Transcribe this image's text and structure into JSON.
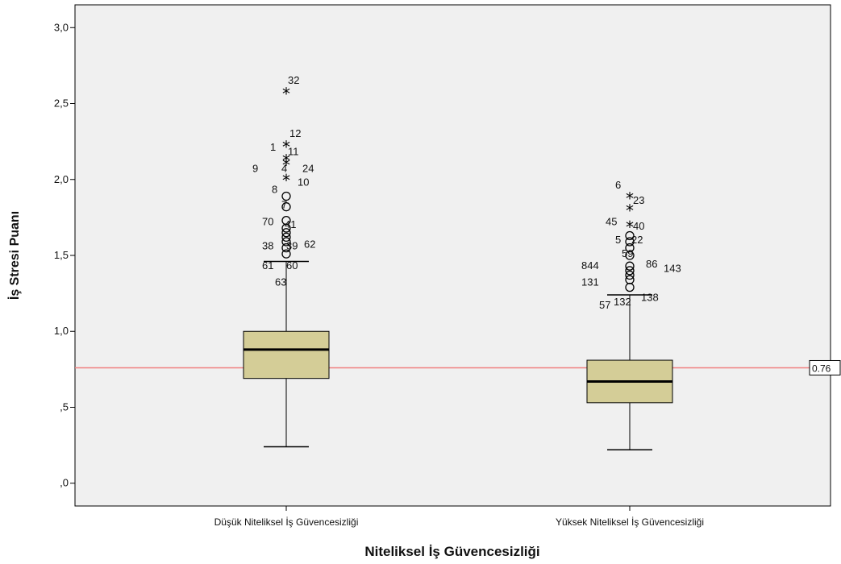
{
  "chart_data": {
    "type": "boxplot",
    "xlabel": "Niteliksel İş Güvencesizliği",
    "ylabel": "İş Stresi Puanı",
    "ylim": [
      -0.15,
      3.15
    ],
    "yticks": [
      {
        "value": 0.0,
        "label": ",0"
      },
      {
        "value": 0.5,
        "label": ",5"
      },
      {
        "value": 1.0,
        "label": "1,0"
      },
      {
        "value": 1.5,
        "label": "1,5"
      },
      {
        "value": 2.0,
        "label": "2,0"
      },
      {
        "value": 2.5,
        "label": "2,5"
      },
      {
        "value": 3.0,
        "label": "3,0"
      }
    ],
    "reference_line": {
      "value": 0.76,
      "label": "0.76",
      "color": "#f08080"
    },
    "colors": {
      "box_fill": "#d4cd97",
      "plot_bg": "#f0f0f0",
      "median": "#000000"
    },
    "categories": [
      {
        "name": "Düşük Niteliksel İş Güvencesizliği",
        "whisker_low": 0.24,
        "q1": 0.69,
        "median": 0.88,
        "q3": 1.0,
        "whisker_high": 1.46,
        "outliers": [
          1.51,
          1.55,
          1.59,
          1.62,
          1.65,
          1.68,
          1.73,
          1.82,
          1.89
        ],
        "extremes": [
          2.0,
          2.1,
          2.13,
          2.22,
          2.57
        ],
        "labels": [
          {
            "text": "32",
            "y": 2.63,
            "dx": 2
          },
          {
            "text": "12",
            "y": 2.28,
            "dx": 4
          },
          {
            "text": "1",
            "y": 2.19,
            "dx": -20
          },
          {
            "text": "11",
            "y": 2.16,
            "dx": 2
          },
          {
            "text": "9",
            "y": 2.05,
            "dx": -42
          },
          {
            "text": "4",
            "y": 2.05,
            "dx": -6
          },
          {
            "text": "24",
            "y": 2.05,
            "dx": 20
          },
          {
            "text": "10",
            "y": 1.96,
            "dx": 14
          },
          {
            "text": "8",
            "y": 1.91,
            "dx": -18
          },
          {
            "text": "7",
            "y": 1.81,
            "dx": -6
          },
          {
            "text": "70",
            "y": 1.7,
            "dx": -30
          },
          {
            "text": "41",
            "y": 1.68,
            "dx": -2
          },
          {
            "text": "38",
            "y": 1.54,
            "dx": -30
          },
          {
            "text": "39",
            "y": 1.54,
            "dx": 0
          },
          {
            "text": "62",
            "y": 1.55,
            "dx": 22
          },
          {
            "text": "61",
            "y": 1.41,
            "dx": -30
          },
          {
            "text": "60",
            "y": 1.41,
            "dx": 0
          },
          {
            "text": "63",
            "y": 1.3,
            "dx": -14
          }
        ]
      },
      {
        "name": "Yüksek Niteliksel İş Güvencesizliği",
        "whisker_low": 0.22,
        "q1": 0.53,
        "median": 0.67,
        "q3": 0.81,
        "whisker_high": 1.24,
        "outliers": [
          1.29,
          1.34,
          1.37,
          1.4,
          1.43,
          1.5,
          1.55,
          1.59,
          1.63
        ],
        "extremes": [
          1.69,
          1.8,
          1.88
        ],
        "labels": [
          {
            "text": "6",
            "y": 1.94,
            "dx": -18
          },
          {
            "text": "23",
            "y": 1.84,
            "dx": 4
          },
          {
            "text": "45",
            "y": 1.7,
            "dx": -30
          },
          {
            "text": "40",
            "y": 1.67,
            "dx": 4
          },
          {
            "text": "5",
            "y": 1.58,
            "dx": -18
          },
          {
            "text": "22",
            "y": 1.58,
            "dx": 2
          },
          {
            "text": "59",
            "y": 1.49,
            "dx": -10
          },
          {
            "text": "844",
            "y": 1.41,
            "dx": -60
          },
          {
            "text": "86",
            "y": 1.42,
            "dx": 20
          },
          {
            "text": "143",
            "y": 1.39,
            "dx": 42
          },
          {
            "text": "131",
            "y": 1.3,
            "dx": -60
          },
          {
            "text": "138",
            "y": 1.2,
            "dx": 14
          },
          {
            "text": "132",
            "y": 1.17,
            "dx": -20
          },
          {
            "text": "57",
            "y": 1.15,
            "dx": -38
          }
        ]
      }
    ]
  }
}
